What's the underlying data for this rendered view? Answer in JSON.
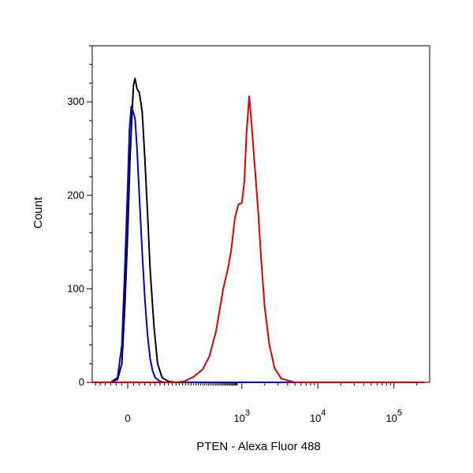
{
  "chart_data": {
    "type": "line",
    "title": "",
    "xlabel": "PTEN - Alexa Fluor 488",
    "ylabel": "Count",
    "x_scale": "biexponential",
    "xlim": [
      -150,
      250000
    ],
    "ylim": [
      0,
      360
    ],
    "grid": false,
    "legend": "none",
    "x_ticks": [
      {
        "value": 0,
        "base": "0",
        "exp": ""
      },
      {
        "value": 1000,
        "base": "10",
        "exp": "3"
      },
      {
        "value": 10000,
        "base": "10",
        "exp": "4"
      },
      {
        "value": 100000,
        "base": "10",
        "exp": "5"
      }
    ],
    "y_ticks": [
      0,
      100,
      200,
      300
    ],
    "series": [
      {
        "color": "#000000",
        "x": [
          -150,
          -60,
          -35,
          -20,
          -10,
          0,
          8,
          15,
          20,
          25,
          32,
          40,
          50,
          60,
          70,
          80,
          95,
          110,
          130,
          160,
          200,
          280,
          400,
          1000,
          10000,
          250000
        ],
        "y": [
          0,
          0,
          3,
          20,
          80,
          160,
          240,
          290,
          318,
          325,
          314,
          310,
          290,
          240,
          180,
          120,
          60,
          20,
          5,
          1,
          0,
          0,
          0,
          0,
          0,
          0
        ]
      },
      {
        "color": "#0000cc",
        "x": [
          -150,
          -60,
          -35,
          -20,
          -10,
          0,
          6,
          12,
          18,
          25,
          32,
          40,
          50,
          60,
          70,
          80,
          90,
          100,
          120,
          140,
          200,
          400,
          1000,
          10000,
          250000
        ],
        "y": [
          0,
          0,
          5,
          40,
          120,
          210,
          270,
          295,
          290,
          282,
          250,
          200,
          140,
          90,
          50,
          25,
          12,
          5,
          1,
          0,
          0,
          0,
          0,
          0,
          0
        ]
      },
      {
        "color": "#dd0000",
        "x": [
          -150,
          100,
          200,
          250,
          320,
          400,
          470,
          550,
          650,
          720,
          780,
          850,
          920,
          1000,
          1080,
          1150,
          1250,
          1350,
          1450,
          1550,
          1650,
          1800,
          2000,
          2300,
          2700,
          3300,
          5000,
          10000,
          250000
        ],
        "y": [
          0,
          0,
          0,
          1,
          6,
          14,
          28,
          55,
          100,
          120,
          140,
          175,
          190,
          192,
          215,
          265,
          306,
          275,
          240,
          210,
          180,
          130,
          80,
          40,
          15,
          4,
          0,
          0,
          0
        ]
      }
    ]
  }
}
